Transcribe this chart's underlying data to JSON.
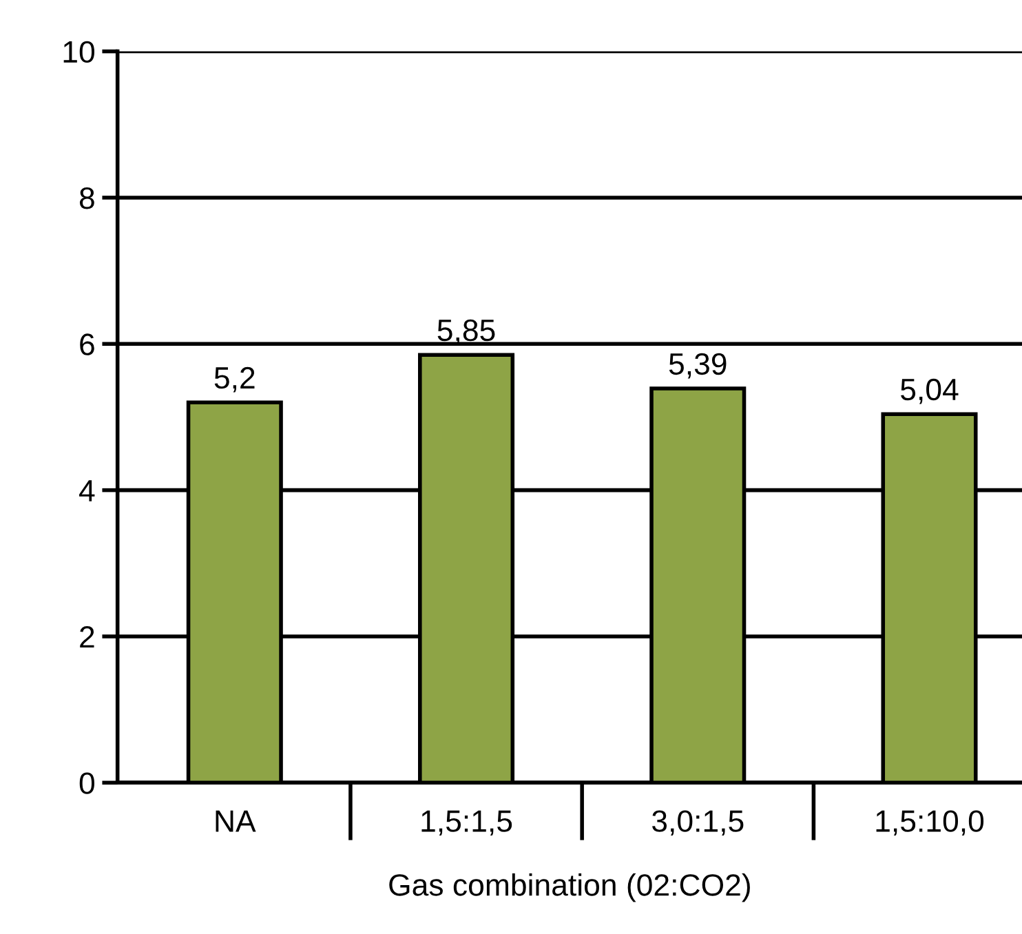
{
  "chart_data": {
    "type": "bar",
    "xlabel": "Gas combination (02:CO2)",
    "categories": [
      "NA",
      "1,5:1,5",
      "3,0:1,5",
      "1,5:10,0"
    ],
    "values": [
      5.2,
      5.85,
      5.39,
      5.04
    ],
    "value_labels": [
      "5,2",
      "5,85",
      "5,39",
      "5,04"
    ],
    "color": "#8ea446",
    "ylim": [
      0,
      10
    ],
    "yticks": [
      0,
      2,
      4,
      6,
      8,
      10
    ],
    "grid": "y",
    "legend": false
  }
}
